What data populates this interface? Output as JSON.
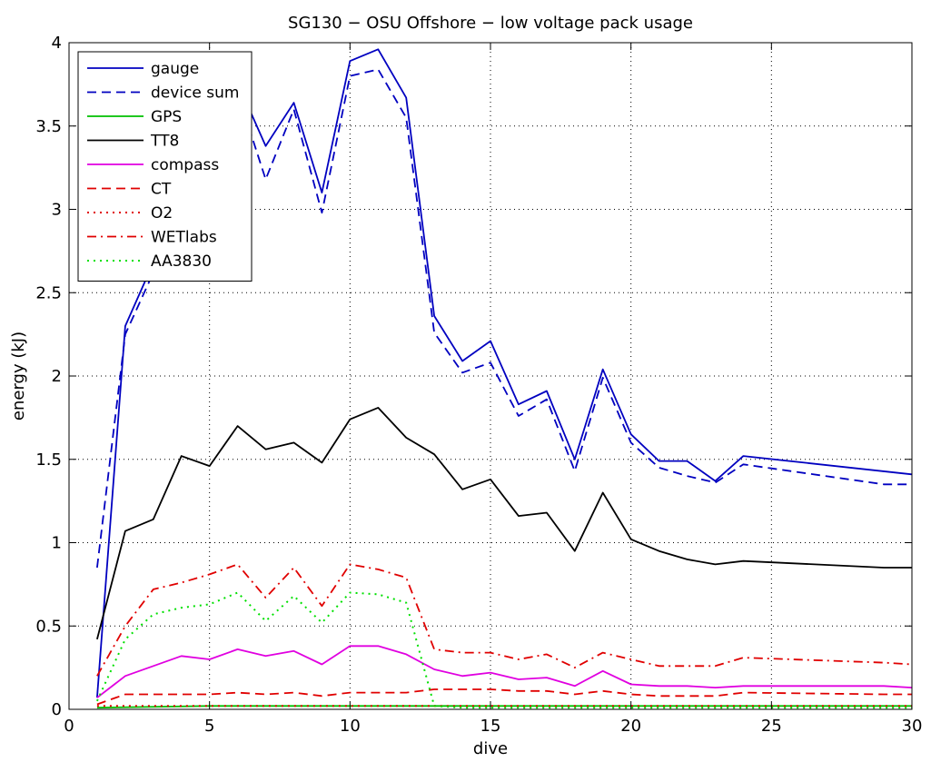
{
  "chart_data": {
    "type": "line",
    "title": "SG130 − OSU Offshore − low voltage pack usage",
    "xlabel": "dive",
    "ylabel": "energy (kJ)",
    "xlim": [
      0,
      30
    ],
    "ylim": [
      0,
      4
    ],
    "xticks": [
      0,
      5,
      10,
      15,
      20,
      25,
      30
    ],
    "yticks": [
      0,
      0.5,
      1,
      1.5,
      2,
      2.5,
      3,
      3.5,
      4
    ],
    "grid": true,
    "legend_position": "top-left",
    "series": [
      {
        "name": "gauge",
        "color": "#0000c0",
        "style": "solid",
        "x": [
          1,
          2,
          3,
          4,
          5,
          6,
          7,
          8,
          9,
          10,
          11,
          12,
          13,
          14,
          15,
          16,
          17,
          18,
          19,
          20,
          21,
          22,
          23,
          24,
          30
        ],
        "y": [
          0.07,
          2.3,
          2.68,
          3.05,
          3.38,
          3.76,
          3.38,
          3.64,
          3.1,
          3.89,
          3.96,
          3.67,
          2.36,
          2.09,
          2.21,
          1.83,
          1.91,
          1.5,
          2.04,
          1.65,
          1.49,
          1.49,
          1.37,
          1.52,
          1.41
        ]
      },
      {
        "name": "device sum",
        "color": "#0000c0",
        "style": "dashed",
        "x": [
          1,
          2,
          3,
          4,
          5,
          6,
          7,
          8,
          9,
          10,
          11,
          12,
          13,
          14,
          15,
          16,
          17,
          18,
          19,
          20,
          21,
          22,
          23,
          24,
          29,
          30
        ],
        "y": [
          0.85,
          2.25,
          2.62,
          2.98,
          3.33,
          3.7,
          3.18,
          3.6,
          2.98,
          3.8,
          3.84,
          3.55,
          2.26,
          2.02,
          2.08,
          1.76,
          1.86,
          1.43,
          1.99,
          1.6,
          1.45,
          1.4,
          1.36,
          1.47,
          1.35,
          1.35
        ]
      },
      {
        "name": "GPS",
        "color": "#00c000",
        "style": "solid",
        "x": [
          1,
          5,
          6,
          10,
          15,
          20,
          25,
          30
        ],
        "y": [
          0.01,
          0.02,
          0.02,
          0.02,
          0.02,
          0.02,
          0.02,
          0.02
        ]
      },
      {
        "name": "TT8",
        "color": "#000000",
        "style": "solid",
        "x": [
          1,
          2,
          3,
          4,
          5,
          6,
          7,
          8,
          9,
          10,
          11,
          12,
          13,
          14,
          15,
          16,
          17,
          18,
          19,
          20,
          21,
          22,
          23,
          24,
          29,
          30
        ],
        "y": [
          0.42,
          1.07,
          1.14,
          1.52,
          1.46,
          1.7,
          1.56,
          1.6,
          1.48,
          1.74,
          1.81,
          1.63,
          1.53,
          1.32,
          1.38,
          1.16,
          1.18,
          0.95,
          1.3,
          1.02,
          0.95,
          0.9,
          0.87,
          0.89,
          0.85,
          0.85
        ]
      },
      {
        "name": "compass",
        "color": "#e000e0",
        "style": "solid",
        "x": [
          1,
          2,
          3,
          4,
          5,
          6,
          7,
          8,
          9,
          10,
          11,
          12,
          13,
          14,
          15,
          16,
          17,
          18,
          19,
          20,
          21,
          22,
          23,
          24,
          29,
          30
        ],
        "y": [
          0.07,
          0.2,
          0.26,
          0.32,
          0.3,
          0.36,
          0.32,
          0.35,
          0.27,
          0.38,
          0.38,
          0.33,
          0.24,
          0.2,
          0.22,
          0.18,
          0.19,
          0.14,
          0.23,
          0.15,
          0.14,
          0.14,
          0.13,
          0.14,
          0.14,
          0.13
        ]
      },
      {
        "name": "CT",
        "color": "#e00000",
        "style": "dashed",
        "x": [
          1,
          2,
          3,
          4,
          5,
          6,
          7,
          8,
          9,
          10,
          11,
          12,
          13,
          14,
          15,
          16,
          17,
          18,
          19,
          20,
          21,
          22,
          23,
          24,
          29,
          30
        ],
        "y": [
          0.03,
          0.09,
          0.09,
          0.09,
          0.09,
          0.1,
          0.09,
          0.1,
          0.08,
          0.1,
          0.1,
          0.1,
          0.12,
          0.12,
          0.12,
          0.11,
          0.11,
          0.09,
          0.11,
          0.09,
          0.08,
          0.08,
          0.08,
          0.1,
          0.09,
          0.09
        ]
      },
      {
        "name": "O2",
        "color": "#e00000",
        "style": "dotted",
        "x": [
          1,
          5,
          10,
          15,
          20,
          25,
          30
        ],
        "y": [
          0.02,
          0.02,
          0.02,
          0.02,
          0.02,
          0.02,
          0.02
        ]
      },
      {
        "name": "WETlabs",
        "color": "#e00000",
        "style": "dashdot",
        "x": [
          1,
          2,
          3,
          4,
          5,
          6,
          7,
          8,
          9,
          10,
          11,
          12,
          13,
          14,
          15,
          16,
          17,
          18,
          19,
          20,
          21,
          22,
          23,
          24,
          29,
          30
        ],
        "y": [
          0.2,
          0.5,
          0.72,
          0.76,
          0.81,
          0.87,
          0.67,
          0.85,
          0.62,
          0.87,
          0.84,
          0.79,
          0.36,
          0.34,
          0.34,
          0.3,
          0.33,
          0.25,
          0.34,
          0.3,
          0.26,
          0.26,
          0.26,
          0.31,
          0.28,
          0.27
        ]
      },
      {
        "name": "AA3830",
        "color": "#00e000",
        "style": "dotted",
        "x": [
          1,
          2,
          3,
          4,
          5,
          6,
          7,
          8,
          9,
          10,
          11,
          12,
          13,
          14,
          15,
          20,
          25,
          30
        ],
        "y": [
          0.05,
          0.42,
          0.57,
          0.61,
          0.63,
          0.7,
          0.53,
          0.68,
          0.52,
          0.7,
          0.69,
          0.64,
          0.02,
          0.01,
          0.01,
          0.01,
          0.01,
          0.01
        ]
      }
    ]
  }
}
